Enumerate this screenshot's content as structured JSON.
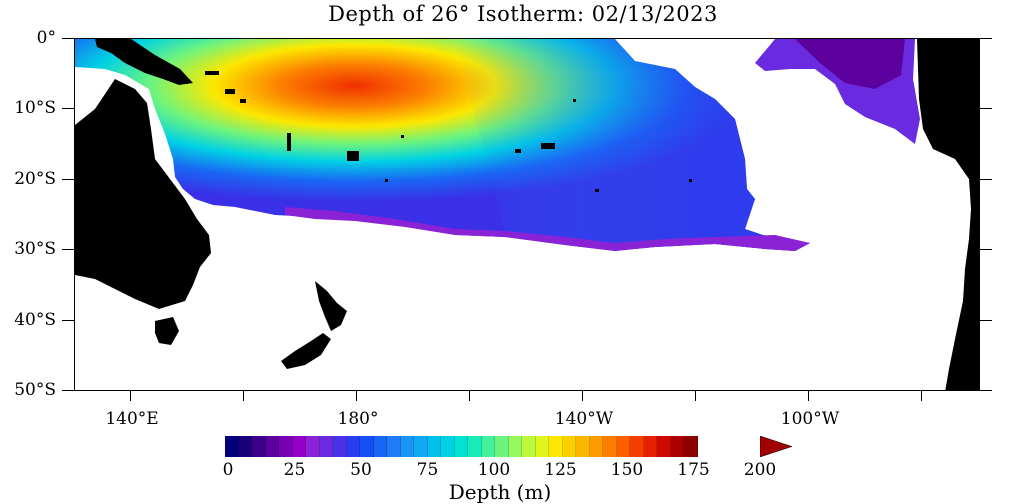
{
  "title": "Depth of 26° Isotherm: 02/13/2023",
  "y_axis": {
    "ticks": [
      "0°",
      "10°S",
      "20°S",
      "30°S",
      "40°S",
      "50°S"
    ]
  },
  "x_axis": {
    "ticks": [
      "140°E",
      "180°",
      "140°W",
      "100°W"
    ]
  },
  "colorbar": {
    "label": "Depth (m)",
    "tick_labels": [
      "0",
      "25",
      "50",
      "75",
      "100",
      "125",
      "150",
      "175",
      "200"
    ],
    "min": 0,
    "max": 200,
    "colors": [
      "#00007a",
      "#1a0078",
      "#3d008a",
      "#5c009e",
      "#7a00b4",
      "#9400c8",
      "#8a22d6",
      "#6a2ae0",
      "#4a32e8",
      "#2a3cf0",
      "#1450f4",
      "#1a66f4",
      "#1e7cf6",
      "#1a94f6",
      "#10aaf4",
      "#00c0ee",
      "#00d2e4",
      "#00e2d2",
      "#18eab8",
      "#44f09a",
      "#6ef47c",
      "#96f85c",
      "#bef83c",
      "#e2f41e",
      "#fce800",
      "#fcd000",
      "#fcb800",
      "#fc9c00",
      "#fc7e00",
      "#fc5e00",
      "#f43e00",
      "#e42000",
      "#cc0a00",
      "#ac0000",
      "#8c0000"
    ]
  }
}
